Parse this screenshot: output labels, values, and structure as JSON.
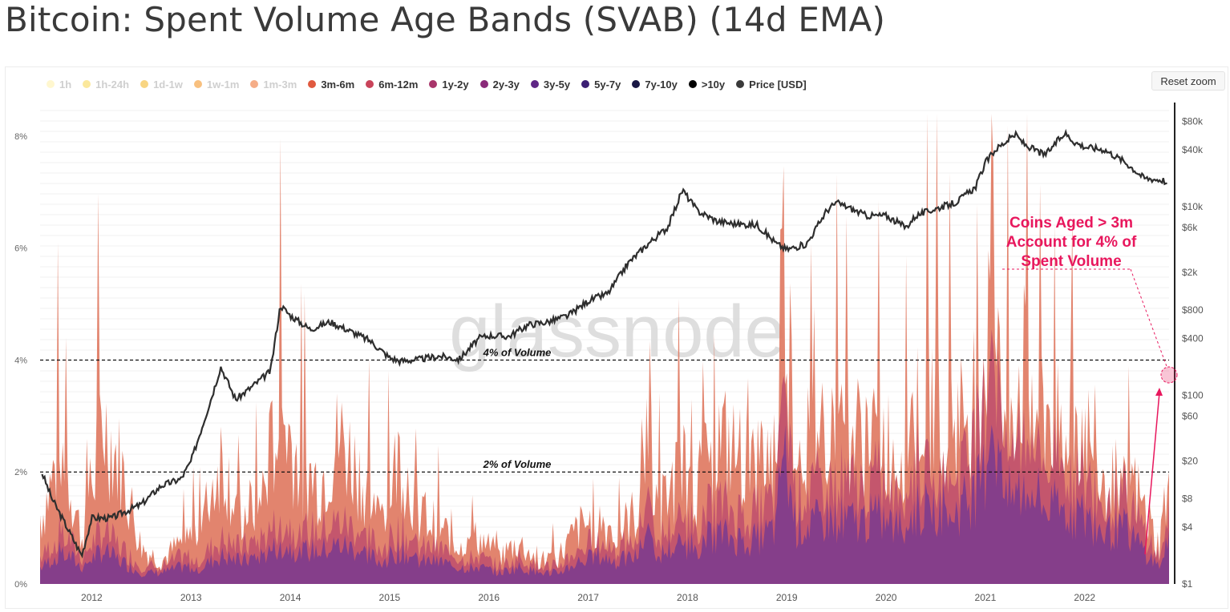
{
  "title": "Bitcoin: Spent Volume Age Bands (SVAB) (14d EMA)",
  "reset_zoom_label": "Reset zoom",
  "watermark": "glassnode",
  "legend": [
    {
      "label": "1h",
      "color": "#fff1a8",
      "visible": false
    },
    {
      "label": "1h-24h",
      "color": "#f7d64a",
      "visible": false
    },
    {
      "label": "1d-1w",
      "color": "#f3b21c",
      "visible": false
    },
    {
      "label": "1w-1m",
      "color": "#f28d15",
      "visible": false
    },
    {
      "label": "1m-3m",
      "color": "#ed6a24",
      "visible": false
    },
    {
      "label": "3m-6m",
      "color": "#e05a3f",
      "visible": true
    },
    {
      "label": "6m-12m",
      "color": "#c9445a",
      "visible": true
    },
    {
      "label": "1y-2y",
      "color": "#a8356a",
      "visible": true
    },
    {
      "label": "2y-3y",
      "color": "#8a2a79",
      "visible": true
    },
    {
      "label": "3y-5y",
      "color": "#5f2685",
      "visible": true
    },
    {
      "label": "5y-7y",
      "color": "#3b1f74",
      "visible": true
    },
    {
      "label": "7y-10y",
      "color": "#191744",
      "visible": true
    },
    {
      "label": ">10y",
      "color": "#000000",
      "visible": true
    },
    {
      "label": "Price [USD]",
      "color": "#3a3a3a",
      "visible": true
    }
  ],
  "annotations": {
    "line_4": "4% of Volume",
    "line_2": "2% of Volume",
    "callout": [
      "Coins Aged > 3m",
      "Account for 4% of",
      "Spent Volume"
    ],
    "callout_color": "#e8175d"
  },
  "chart_data": {
    "type": "area",
    "x_tick_labels": [
      "2012",
      "2013",
      "2014",
      "2015",
      "2016",
      "2017",
      "2018",
      "2019",
      "2020",
      "2021",
      "2022"
    ],
    "y_left_ticks": [
      "0%",
      "2%",
      "4%",
      "6%",
      "8%"
    ],
    "y_left_values": [
      0,
      2,
      4,
      6,
      8
    ],
    "ylim_left": [
      0,
      8.6
    ],
    "y_right_ticks": [
      "$1",
      "$4",
      "$8",
      "$20",
      "$60",
      "$100",
      "$400",
      "$800",
      "$2k",
      "$6k",
      "$10k",
      "$40k",
      "$80k"
    ],
    "y_right_values": [
      1,
      4,
      8,
      20,
      60,
      100,
      400,
      800,
      2000,
      6000,
      10000,
      40000,
      80000
    ],
    "ylim_right_log": [
      1,
      100000
    ],
    "xlim": [
      2011.48,
      2022.85
    ],
    "reference_lines": [
      4,
      2
    ],
    "stacked_share_percent": {
      "x": [
        2011.5,
        2011.7,
        2011.9,
        2012.1,
        2012.3,
        2012.5,
        2012.7,
        2012.9,
        2013.1,
        2013.3,
        2013.5,
        2013.7,
        2013.9,
        2014.1,
        2014.3,
        2014.5,
        2014.7,
        2014.9,
        2015.1,
        2015.3,
        2015.5,
        2015.7,
        2015.9,
        2016.1,
        2016.3,
        2016.5,
        2016.7,
        2016.9,
        2017.1,
        2017.3,
        2017.5,
        2017.6,
        2017.7,
        2017.9,
        2018.1,
        2018.3,
        2018.5,
        2018.7,
        2018.9,
        2018.95,
        2019.1,
        2019.3,
        2019.5,
        2019.7,
        2019.9,
        2020.1,
        2020.3,
        2020.5,
        2020.7,
        2020.9,
        2021.0,
        2021.05,
        2021.2,
        2021.4,
        2021.6,
        2021.8,
        2022.0,
        2022.2,
        2022.4,
        2022.6,
        2022.75,
        2022.82
      ],
      "total": [
        1.5,
        3.0,
        1.0,
        3.6,
        2.5,
        0.8,
        0.5,
        0.9,
        1.2,
        2.8,
        1.5,
        1.8,
        3.8,
        2.5,
        2.2,
        3.2,
        2.4,
        1.4,
        2.8,
        1.6,
        1.2,
        0.9,
        1.0,
        0.6,
        0.9,
        0.5,
        0.6,
        1.2,
        1.4,
        1.1,
        1.6,
        3.8,
        1.5,
        2.4,
        2.2,
        3.2,
        2.8,
        2.6,
        3.0,
        7.5,
        3.0,
        3.4,
        3.8,
        3.2,
        3.5,
        2.8,
        3.8,
        4.0,
        3.6,
        4.2,
        5.0,
        8.5,
        3.8,
        4.8,
        3.8,
        3.8,
        3.4,
        2.4,
        2.6,
        1.6,
        0.8,
        2.0
      ],
      "older_than_1y": [
        0.3,
        0.6,
        0.3,
        0.6,
        0.4,
        0.2,
        0.2,
        0.3,
        0.3,
        0.5,
        0.4,
        0.5,
        0.7,
        0.6,
        0.6,
        0.7,
        0.6,
        0.4,
        0.6,
        0.4,
        0.4,
        0.3,
        0.3,
        0.2,
        0.3,
        0.2,
        0.2,
        0.4,
        0.5,
        0.4,
        0.5,
        1.0,
        0.5,
        0.7,
        0.7,
        0.9,
        0.8,
        0.8,
        1.0,
        2.5,
        1.0,
        1.1,
        1.2,
        1.1,
        1.2,
        1.0,
        1.3,
        1.4,
        1.3,
        1.6,
        2.0,
        3.2,
        1.5,
        1.7,
        1.4,
        1.3,
        1.2,
        0.9,
        1.0,
        0.6,
        0.3,
        0.7
      ]
    },
    "price_usd": {
      "x": [
        2011.5,
        2011.6,
        2011.75,
        2011.9,
        2012.0,
        2012.2,
        2012.5,
        2012.7,
        2012.9,
        2013.0,
        2013.2,
        2013.3,
        2013.45,
        2013.6,
        2013.8,
        2013.9,
        2014.0,
        2014.2,
        2014.4,
        2014.6,
        2014.8,
        2015.0,
        2015.1,
        2015.3,
        2015.5,
        2015.7,
        2015.9,
        2016.0,
        2016.2,
        2016.4,
        2016.6,
        2016.8,
        2017.0,
        2017.2,
        2017.4,
        2017.6,
        2017.8,
        2017.95,
        2018.1,
        2018.3,
        2018.5,
        2018.7,
        2018.9,
        2019.0,
        2019.2,
        2019.4,
        2019.5,
        2019.6,
        2019.8,
        2020.0,
        2020.2,
        2020.3,
        2020.5,
        2020.7,
        2020.9,
        2021.0,
        2021.1,
        2021.3,
        2021.4,
        2021.6,
        2021.8,
        2021.9,
        2022.0,
        2022.2,
        2022.4,
        2022.6,
        2022.8,
        2022.83
      ],
      "value": [
        15,
        8,
        4,
        2,
        5,
        5,
        7,
        11,
        13,
        20,
        90,
        200,
        90,
        120,
        180,
        900,
        700,
        500,
        600,
        480,
        380,
        250,
        230,
        240,
        260,
        240,
        400,
        430,
        420,
        560,
        600,
        700,
        1000,
        1200,
        2500,
        4000,
        6000,
        15000,
        9000,
        7000,
        6500,
        6400,
        4000,
        3500,
        4000,
        9000,
        11000,
        10000,
        8000,
        8000,
        6000,
        8000,
        9500,
        11000,
        16000,
        29000,
        40000,
        58000,
        45000,
        35000,
        60000,
        48000,
        43000,
        40000,
        30000,
        20000,
        19000,
        16500
      ]
    }
  }
}
